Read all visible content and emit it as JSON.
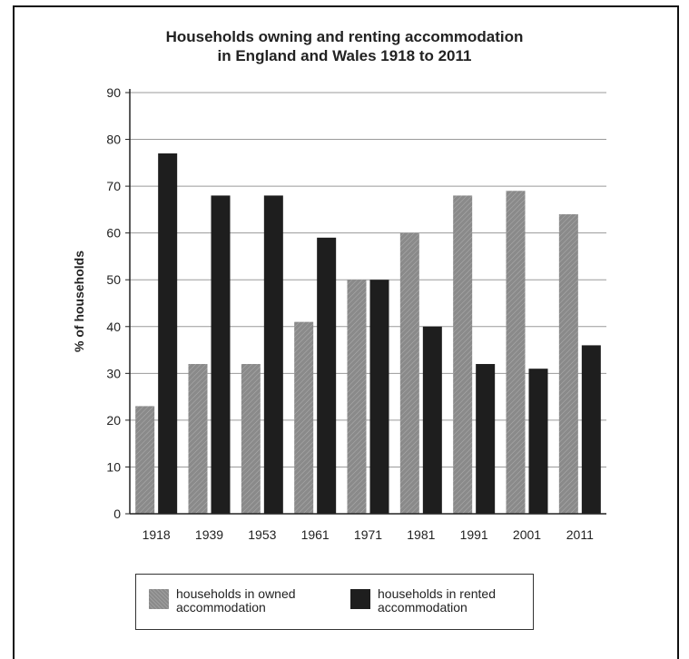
{
  "chart_data": {
    "type": "bar",
    "title": "Households owning and renting accommodation in England and Wales 1918 to 2011",
    "title_lines": [
      "Households owning and renting accommodation",
      "in England and Wales 1918 to 2011"
    ],
    "xlabel": "",
    "ylabel": "% of households",
    "categories": [
      "1918",
      "1939",
      "1953",
      "1961",
      "1971",
      "1981",
      "1991",
      "2001",
      "2011"
    ],
    "series": [
      {
        "name": "households in owned accommodation",
        "values": [
          23,
          32,
          32,
          41,
          50,
          60,
          68,
          69,
          64
        ],
        "color": "#8a8a8a"
      },
      {
        "name": "households in rented accommodation",
        "values": [
          77,
          68,
          68,
          59,
          50,
          40,
          32,
          31,
          36
        ],
        "color": "#1e1e1e"
      }
    ],
    "ylim": [
      0,
      90
    ],
    "yticks": [
      "0",
      "10",
      "20",
      "30",
      "40",
      "50",
      "60",
      "70",
      "80",
      "90"
    ],
    "grid": true,
    "legend": {
      "position": "bottom",
      "owned_label": "households in owned\naccommodation",
      "rented_label": "households in rented\naccommodation"
    }
  }
}
